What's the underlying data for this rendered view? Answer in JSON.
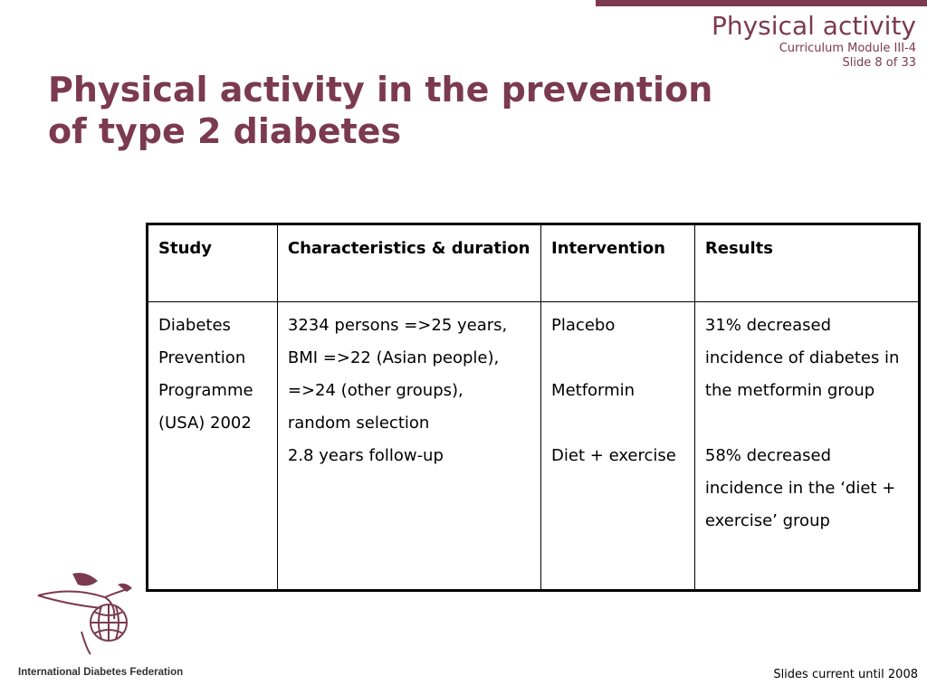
{
  "header": {
    "title": "Physical activity",
    "module": "Curriculum Module III-4",
    "slide": "Slide 8 of 33"
  },
  "slide_title_line1": "Physical activity in the prevention",
  "slide_title_line2": "of type 2 diabetes",
  "table": {
    "headers": [
      "Study",
      "Characteristics & duration",
      "Intervention",
      "Results"
    ],
    "row": {
      "study": "Diabetes Prevention Programme (USA) 2002",
      "characteristics": [
        "3234 persons =>25 years, BMI =>22 (Asian people), =>24 (other groups), random selection",
        "2.8 years follow-up"
      ],
      "intervention": [
        "Placebo",
        "",
        "Metformin",
        "",
        "Diet + exercise"
      ],
      "results": [
        "31% decreased incidence of diabetes in the metformin group",
        "",
        "58% decreased incidence in the ‘diet + exercise’ group"
      ]
    }
  },
  "logo_text": "International Diabetes Federation",
  "footer": "Slides current until 2008",
  "colors": {
    "accent": "#7b3a4f"
  }
}
